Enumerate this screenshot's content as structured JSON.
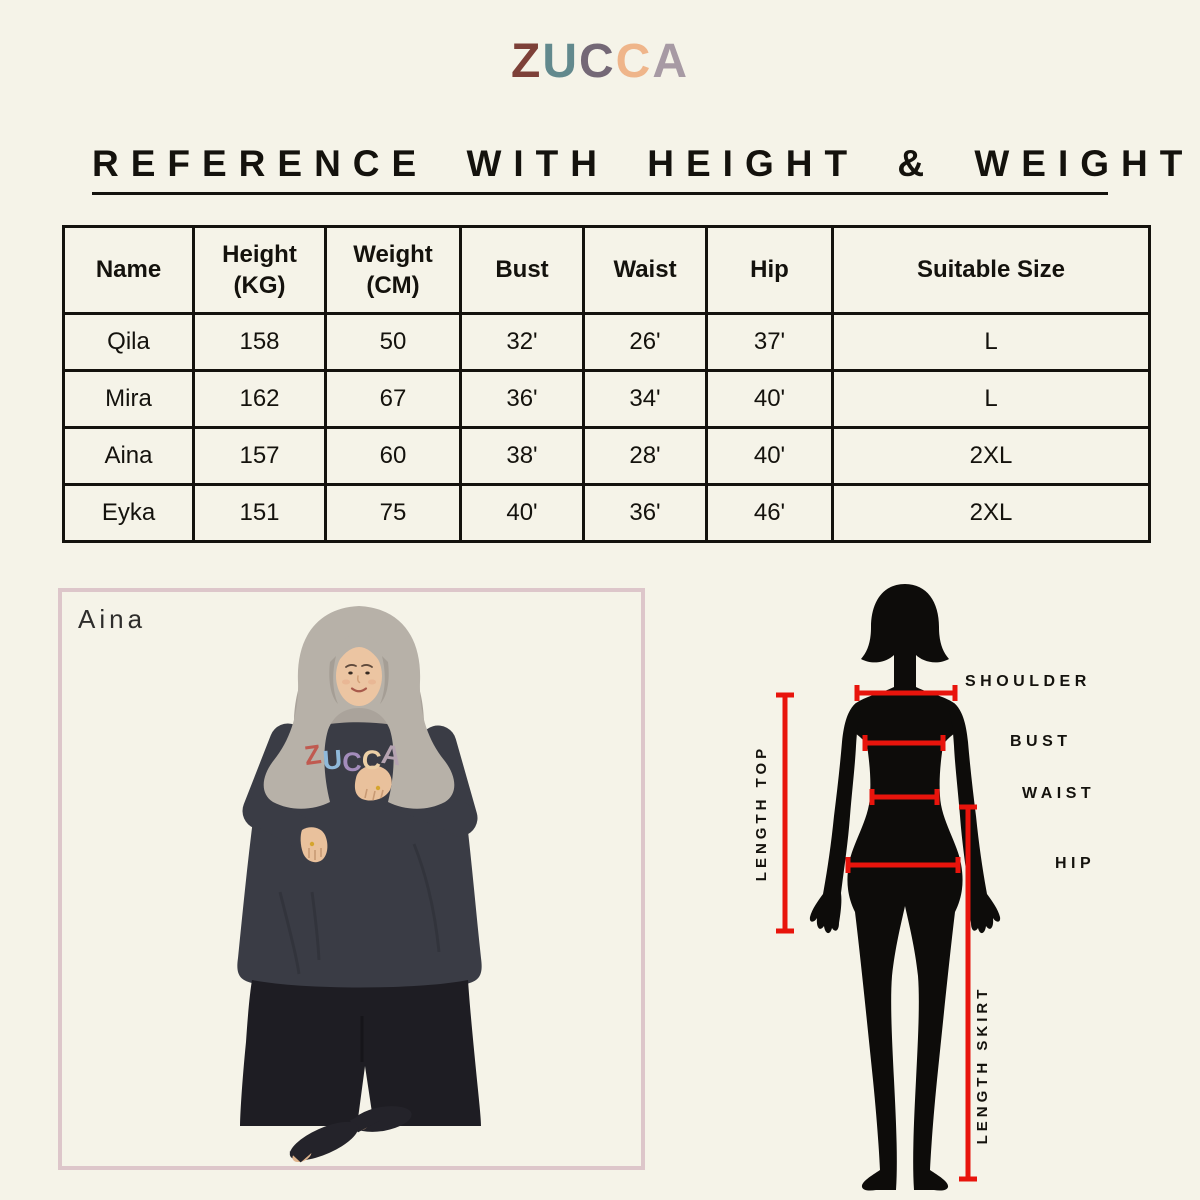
{
  "colors": {
    "background": "#f5f3e8",
    "ink": "#14120d",
    "red_line": "#e8140c",
    "silhouette": "#0d0c0a",
    "card_border": "#ddc6ca"
  },
  "logo": {
    "letters": [
      {
        "ch": "Z",
        "color": "#7d4038"
      },
      {
        "ch": "U",
        "color": "#62898d"
      },
      {
        "ch": "C",
        "color": "#746876"
      },
      {
        "ch": "C",
        "color": "#efb58a"
      },
      {
        "ch": "A",
        "color": "#a79aa4"
      }
    ]
  },
  "title": "REFERENCE WITH HEIGHT & WEIGHT",
  "table": {
    "headers": [
      "Name",
      "Height\n(KG)",
      "Weight\n(CM)",
      "Bust",
      "Waist",
      "Hip",
      "Suitable Size"
    ],
    "rows": [
      [
        "Qila",
        "158",
        "50",
        "32'",
        "26'",
        "37'",
        "L"
      ],
      [
        "Mira",
        "162",
        "67",
        "36'",
        "34'",
        "40'",
        "L"
      ],
      [
        "Aina",
        "157",
        "60",
        "38'",
        "28'",
        "40'",
        "2XL"
      ],
      [
        "Eyka",
        "151",
        "75",
        "40'",
        "36'",
        "46'",
        "2XL"
      ]
    ]
  },
  "model_card": {
    "label": "Aina",
    "shirt_letters": [
      {
        "ch": "Z",
        "color": "#c05a50"
      },
      {
        "ch": "U",
        "color": "#8fb9da"
      },
      {
        "ch": "C",
        "color": "#a38cbb"
      },
      {
        "ch": "C",
        "color": "#ecd0a6"
      },
      {
        "ch": "A",
        "color": "#b5a3b1"
      }
    ]
  },
  "diagram": {
    "labels": {
      "shoulder": "SHOULDER",
      "bust": "BUST",
      "waist": "WAIST",
      "hip": "HIP",
      "length_top": "LENGTH TOP",
      "length_skirt": "LENGTH SKIRT"
    }
  },
  "chart_data": {
    "type": "table",
    "columns": [
      "Name",
      "Height (KG)",
      "Weight (CM)",
      "Bust",
      "Waist",
      "Hip",
      "Suitable Size"
    ],
    "rows": [
      [
        "Qila",
        158,
        50,
        "32'",
        "26'",
        "37'",
        "L"
      ],
      [
        "Mira",
        162,
        67,
        "36'",
        "34'",
        "40'",
        "L"
      ],
      [
        "Aina",
        157,
        60,
        "38'",
        "28'",
        "40'",
        "2XL"
      ],
      [
        "Eyka",
        151,
        75,
        "40'",
        "36'",
        "46'",
        "2XL"
      ]
    ],
    "title": "REFERENCE WITH HEIGHT & WEIGHT"
  }
}
